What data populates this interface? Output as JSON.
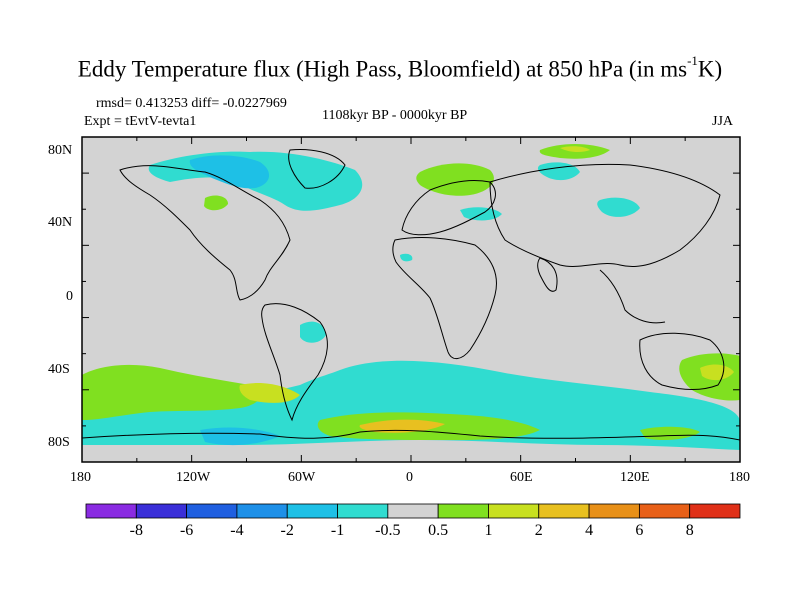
{
  "title_main": "Eddy Temperature flux (High Pass, Bloomfield) at 850 hPa (in ms",
  "title_sup": "-1",
  "title_end": "K)",
  "stats": "rmsd= 0.413253 diff= -0.0227969",
  "expt": "Expt = tEvtV-tevta1",
  "period": "1108kyr BP - 0000kyr BP",
  "season": "JJA",
  "lat_labels": [
    "80N",
    "40N",
    "0",
    "40S",
    "80S"
  ],
  "lon_labels": [
    "180",
    "120W",
    "60W",
    "0",
    "60E",
    "120E",
    "180"
  ],
  "colorbar": {
    "labels": [
      "-8",
      "-6",
      "-4",
      "-2",
      "-1",
      "-0.5",
      "0.5",
      "1",
      "2",
      "4",
      "6",
      "8"
    ],
    "colors": [
      "#8a2be2",
      "#3a2fd8",
      "#1f5fe0",
      "#1e90e8",
      "#1ec0e6",
      "#30dcd0",
      "#d3d3d3",
      "#80e020",
      "#c8e020",
      "#e8c020",
      "#e89018",
      "#e86018",
      "#e03018"
    ]
  },
  "colors": {
    "background": "#d3d3d3",
    "coast": "#000000"
  }
}
